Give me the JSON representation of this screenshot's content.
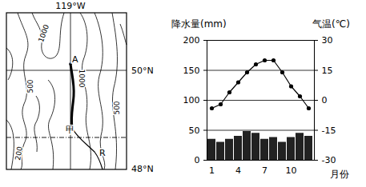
{
  "map": {
    "longitude": "119°W",
    "latitudes": [
      "50°N",
      "48°N"
    ],
    "contours": [
      "1000",
      "1000",
      "500",
      "500",
      "200"
    ],
    "points": [
      "A",
      "甲",
      "R"
    ]
  },
  "chart_data": {
    "type": "bar",
    "x_label": "月份",
    "categories": [
      1,
      null,
      null,
      4,
      null,
      null,
      7,
      null,
      null,
      10,
      null,
      null
    ],
    "series": [
      {
        "name": "降水量(mm)",
        "type": "bar",
        "color": "#222222",
        "values": [
          35,
          30,
          35,
          40,
          48,
          45,
          35,
          38,
          30,
          38,
          45,
          40
        ]
      },
      {
        "name": "气温(℃)",
        "type": "line",
        "axis": "y2",
        "color": "#000000",
        "marker": "circle",
        "values": [
          -4,
          -2,
          4,
          9,
          14,
          18,
          20,
          20,
          14,
          7,
          2,
          -4
        ]
      }
    ],
    "ylim": [
      0,
      200
    ],
    "yticks": [
      0,
      50,
      100,
      150,
      200
    ],
    "y2lim": [
      -30,
      30
    ],
    "y2ticks": [
      -30,
      -15,
      0,
      15,
      30
    ],
    "grid": true
  }
}
